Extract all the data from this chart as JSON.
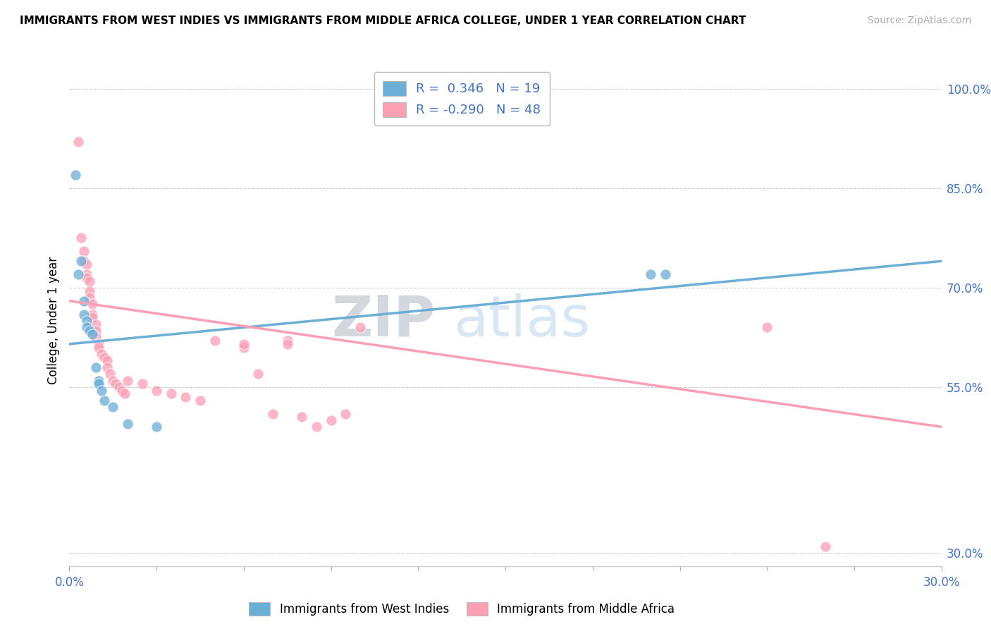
{
  "title": "IMMIGRANTS FROM WEST INDIES VS IMMIGRANTS FROM MIDDLE AFRICA COLLEGE, UNDER 1 YEAR CORRELATION CHART",
  "source": "Source: ZipAtlas.com",
  "ylabel": "College, Under 1 year",
  "ylabel_right_labels": [
    "100.0%",
    "85.0%",
    "70.0%",
    "55.0%",
    "30.0%"
  ],
  "ylabel_right_values": [
    1.0,
    0.85,
    0.7,
    0.55,
    0.3
  ],
  "legend_blue_r": "0.346",
  "legend_blue_n": "19",
  "legend_pink_r": "-0.290",
  "legend_pink_n": "48",
  "blue_color": "#6baed6",
  "pink_color": "#fc9fb5",
  "watermark_zip": "ZIP",
  "watermark_atlas": "atlas",
  "xmin": 0.0,
  "xmax": 0.3,
  "ymin": 0.28,
  "ymax": 1.02,
  "blue_scatter": [
    [
      0.002,
      0.87
    ],
    [
      0.003,
      0.72
    ],
    [
      0.004,
      0.74
    ],
    [
      0.005,
      0.68
    ],
    [
      0.005,
      0.66
    ],
    [
      0.006,
      0.65
    ],
    [
      0.006,
      0.64
    ],
    [
      0.007,
      0.635
    ],
    [
      0.008,
      0.63
    ],
    [
      0.009,
      0.58
    ],
    [
      0.01,
      0.56
    ],
    [
      0.01,
      0.555
    ],
    [
      0.011,
      0.545
    ],
    [
      0.012,
      0.53
    ],
    [
      0.015,
      0.52
    ],
    [
      0.02,
      0.495
    ],
    [
      0.03,
      0.49
    ],
    [
      0.2,
      0.72
    ],
    [
      0.205,
      0.72
    ]
  ],
  "pink_scatter": [
    [
      0.003,
      0.92
    ],
    [
      0.004,
      0.775
    ],
    [
      0.005,
      0.755
    ],
    [
      0.005,
      0.74
    ],
    [
      0.006,
      0.735
    ],
    [
      0.006,
      0.72
    ],
    [
      0.006,
      0.715
    ],
    [
      0.007,
      0.71
    ],
    [
      0.007,
      0.695
    ],
    [
      0.007,
      0.685
    ],
    [
      0.008,
      0.675
    ],
    [
      0.008,
      0.66
    ],
    [
      0.008,
      0.655
    ],
    [
      0.009,
      0.645
    ],
    [
      0.009,
      0.635
    ],
    [
      0.009,
      0.625
    ],
    [
      0.01,
      0.615
    ],
    [
      0.01,
      0.61
    ],
    [
      0.011,
      0.6
    ],
    [
      0.012,
      0.595
    ],
    [
      0.013,
      0.59
    ],
    [
      0.013,
      0.58
    ],
    [
      0.014,
      0.57
    ],
    [
      0.015,
      0.56
    ],
    [
      0.016,
      0.555
    ],
    [
      0.017,
      0.55
    ],
    [
      0.018,
      0.545
    ],
    [
      0.019,
      0.54
    ],
    [
      0.02,
      0.56
    ],
    [
      0.025,
      0.555
    ],
    [
      0.03,
      0.545
    ],
    [
      0.035,
      0.54
    ],
    [
      0.04,
      0.535
    ],
    [
      0.045,
      0.53
    ],
    [
      0.05,
      0.62
    ],
    [
      0.06,
      0.61
    ],
    [
      0.06,
      0.615
    ],
    [
      0.065,
      0.57
    ],
    [
      0.07,
      0.51
    ],
    [
      0.075,
      0.62
    ],
    [
      0.075,
      0.615
    ],
    [
      0.08,
      0.505
    ],
    [
      0.085,
      0.49
    ],
    [
      0.09,
      0.5
    ],
    [
      0.095,
      0.51
    ],
    [
      0.1,
      0.64
    ],
    [
      0.24,
      0.64
    ],
    [
      0.26,
      0.31
    ]
  ],
  "blue_trend_x": [
    0.0,
    0.3
  ],
  "blue_trend_y": [
    0.615,
    0.74
  ],
  "pink_trend_x": [
    0.0,
    0.3
  ],
  "pink_trend_y": [
    0.68,
    0.49
  ]
}
